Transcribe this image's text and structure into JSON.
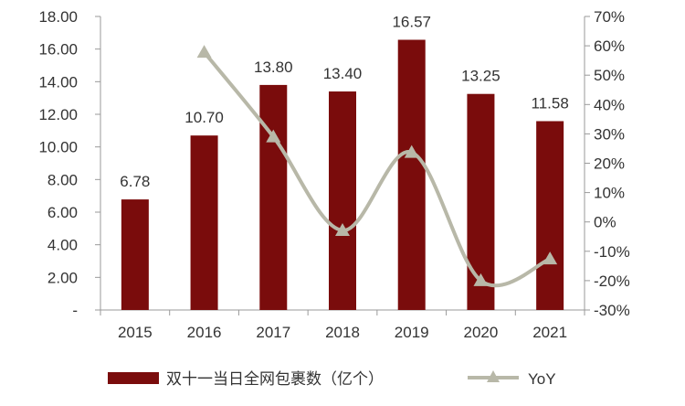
{
  "chart_data": {
    "type": "bar",
    "categories": [
      "2015",
      "2016",
      "2017",
      "2018",
      "2019",
      "2020",
      "2021"
    ],
    "series": [
      {
        "name": "双十一当日全网包裹数（亿个）",
        "type": "bar",
        "axis": "left",
        "values": [
          6.78,
          10.7,
          13.8,
          13.4,
          16.57,
          13.25,
          11.58
        ],
        "labels": [
          "6.78",
          "10.70",
          "13.80",
          "13.40",
          "16.57",
          "13.25",
          "11.58"
        ],
        "color": "#7a0c0c"
      },
      {
        "name": "YoY",
        "type": "line",
        "axis": "right",
        "values": [
          null,
          57.8,
          29.0,
          -2.9,
          23.7,
          -20.0,
          -12.6
        ],
        "color": "#b8b8a8"
      }
    ],
    "y_left": {
      "lim": [
        0,
        18
      ],
      "ticks": [
        0,
        2,
        4,
        6,
        8,
        10,
        12,
        14,
        16,
        18
      ],
      "tick_labels": [
        "-",
        "2.00",
        "4.00",
        "6.00",
        "8.00",
        "10.00",
        "12.00",
        "14.00",
        "16.00",
        "18.00"
      ]
    },
    "y_right": {
      "lim": [
        -30,
        70
      ],
      "ticks": [
        -30,
        -20,
        -10,
        0,
        10,
        20,
        30,
        40,
        50,
        60,
        70
      ],
      "tick_labels": [
        "-30%",
        "-20%",
        "-10%",
        "0%",
        "10%",
        "20%",
        "30%",
        "40%",
        "50%",
        "60%",
        "70%"
      ]
    },
    "title": "",
    "xlabel": "",
    "ylabel": "",
    "grid": false,
    "legend": {
      "placement": "bottom"
    }
  }
}
